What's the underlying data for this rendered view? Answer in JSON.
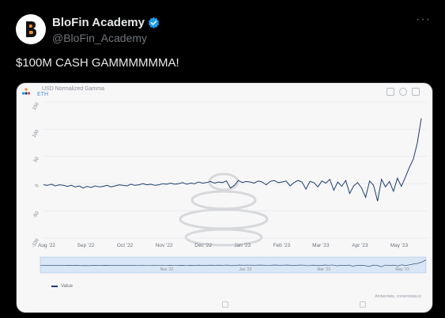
{
  "account": {
    "display_name": "BloFin Academy",
    "handle": "@BloFin_Academy",
    "avatar_icon": "blofin-logo-icon",
    "verified_icon": "verified-badge-icon",
    "more_icon": "more-dots-icon"
  },
  "tweet": {
    "text": "$100M CASH GAMMMMMMA!"
  },
  "card": {
    "brand_icon": "amberdata-logo-icon",
    "header_icons": [
      "bookmark-icon",
      "info-icon",
      "menu-icon"
    ],
    "footer_icons": [
      "camera-icon",
      "download-icon"
    ],
    "credit": "Amberdata, contentdata.io"
  },
  "colors": {
    "line": "#1f3b6b",
    "accent": "#1d9bf0",
    "navigator_fill": "#cfe0f5"
  },
  "chart_data": {
    "type": "line",
    "title": "USD Normalized Gamma",
    "subtitle": "ETH",
    "y_ticks": [
      "150",
      "100",
      "50",
      "0",
      "-50",
      "-100"
    ],
    "ylim": [
      -100,
      150
    ],
    "x_ticks": [
      "Aug '22",
      "Sep '22",
      "Oct '22",
      "Nov '22",
      "Dec '22",
      "Jan '23",
      "Feb '23",
      "Mar '23",
      "Apr '23",
      "May '23"
    ],
    "navigator_ticks": [
      "Nov '22",
      "Jan '23",
      "Mar '23",
      "May '23"
    ],
    "series": [
      {
        "name": "Value",
        "values": [
          -2,
          -3,
          -1,
          -4,
          -2,
          -3,
          -5,
          -3,
          -6,
          -4,
          -8,
          -5,
          -7,
          -4,
          -6,
          -5,
          -3,
          -6,
          -4,
          -2,
          -3,
          -4,
          -1,
          -3,
          -2,
          0,
          -2,
          -1,
          -3,
          -2,
          0,
          -1,
          1,
          -1,
          0,
          2,
          -1,
          1,
          0,
          3,
          1,
          2,
          4,
          1,
          3,
          2,
          5,
          -8,
          -3,
          6,
          2,
          4,
          3,
          1,
          5,
          3,
          -2,
          4,
          6,
          2,
          3,
          5,
          -4,
          2,
          6,
          3,
          -10,
          4,
          2,
          -6,
          5,
          1,
          8,
          -12,
          3,
          -5,
          6,
          -18,
          -4,
          2,
          -8,
          -25,
          5,
          -3,
          -32,
          8,
          -6,
          4,
          -14,
          10,
          -5,
          12,
          30,
          45,
          75,
          120
        ]
      }
    ]
  }
}
